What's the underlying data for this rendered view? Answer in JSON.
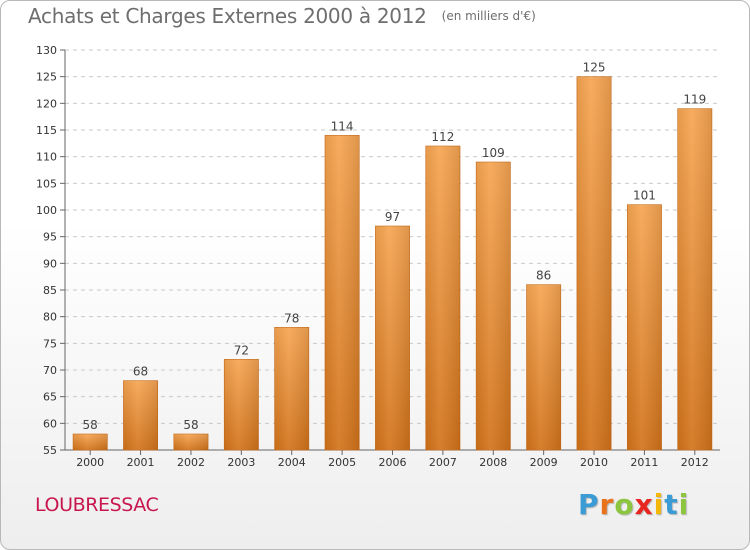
{
  "header": {
    "title": "Achats et Charges Externes 2000 à 2012",
    "subtitle": "(en milliers d'€)"
  },
  "footer": {
    "commune": "LOUBRESSAC",
    "brand": "Proxiti",
    "brand_letters": [
      {
        "char": "P",
        "color": "#3a9bd5"
      },
      {
        "char": "r",
        "color": "#e8731a"
      },
      {
        "char": "o",
        "color": "#8cc63e"
      },
      {
        "char": "x",
        "color": "#e8251f"
      },
      {
        "char": "i",
        "color": "#f2b707"
      },
      {
        "char": "t",
        "color": "#3a9bd5"
      },
      {
        "char": "i",
        "color": "#8cc63e"
      }
    ]
  },
  "colors": {
    "bar_light": "#f6a552",
    "bar_dark": "#d2731a",
    "commune": "#c8174f",
    "title": "#6e6e6e"
  },
  "chart_data": {
    "type": "bar",
    "categories": [
      "2000",
      "2001",
      "2002",
      "2003",
      "2004",
      "2005",
      "2006",
      "2007",
      "2008",
      "2009",
      "2010",
      "2011",
      "2012"
    ],
    "values": [
      58,
      68,
      58,
      72,
      78,
      114,
      97,
      112,
      109,
      86,
      125,
      101,
      119
    ],
    "title": "Achats et Charges Externes 2000 à 2012",
    "ylim": [
      55,
      130
    ],
    "yticks": [
      55,
      60,
      65,
      70,
      75,
      80,
      85,
      90,
      95,
      100,
      105,
      110,
      115,
      120,
      125,
      130
    ],
    "grid": true,
    "legend": "none"
  }
}
